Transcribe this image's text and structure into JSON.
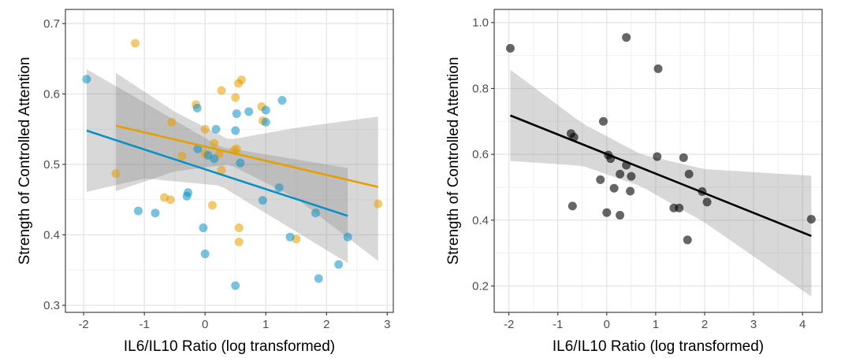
{
  "chart_data": [
    {
      "type": "scatter",
      "title": "",
      "xlabel": "IL6/IL10 Ratio (log transformed)",
      "ylabel": "Strength of Controlled Attention",
      "xlim": [
        -2.3,
        3.1
      ],
      "ylim": [
        0.29,
        0.72
      ],
      "x_ticks": [
        -2,
        -1,
        0,
        1,
        2,
        3
      ],
      "y_ticks": [
        0.3,
        0.4,
        0.5,
        0.6,
        0.7
      ],
      "x_tick_labels": [
        "-2",
        "-1",
        "0",
        "1",
        "2",
        "3"
      ],
      "y_tick_labels": [
        "0.3",
        "0.4",
        "0.5",
        "0.6",
        "0.7"
      ],
      "grid": true,
      "legend": "none",
      "series": [
        {
          "color": "#E69F00",
          "points": [
            [
              -1.15,
              0.672
            ],
            [
              -1.47,
              0.487
            ],
            [
              -0.55,
              0.56
            ],
            [
              -0.67,
              0.453
            ],
            [
              -0.57,
              0.45
            ],
            [
              -0.38,
              0.512
            ],
            [
              -0.15,
              0.585
            ],
            [
              0.0,
              0.55
            ],
            [
              0.12,
              0.442
            ],
            [
              0.23,
              0.515
            ],
            [
              0.27,
              0.605
            ],
            [
              0.27,
              0.492
            ],
            [
              0.48,
              0.52
            ],
            [
              0.5,
              0.595
            ],
            [
              0.52,
              0.522
            ],
            [
              0.55,
              0.615
            ],
            [
              0.6,
              0.62
            ],
            [
              0.56,
              0.41
            ],
            [
              0.56,
              0.39
            ],
            [
              0.93,
              0.582
            ],
            [
              0.95,
              0.562
            ],
            [
              1.5,
              0.394
            ],
            [
              2.85,
              0.444
            ],
            [
              0.0,
              0.515
            ],
            [
              0.15,
              0.53
            ]
          ],
          "fit": {
            "x": [
              -1.47,
              2.85
            ],
            "y": [
              0.555,
              0.468
            ]
          },
          "ci_upper": [
            [
              -1.47,
              0.63
            ],
            [
              -0.5,
              0.575
            ],
            [
              0.4,
              0.535
            ],
            [
              1.5,
              0.552
            ],
            [
              2.85,
              0.568
            ]
          ],
          "ci_lower": [
            [
              -1.47,
              0.462
            ],
            [
              -0.5,
              0.49
            ],
            [
              0.4,
              0.5
            ],
            [
              1.5,
              0.452
            ],
            [
              2.85,
              0.363
            ]
          ]
        },
        {
          "color": "#0E8FC4",
          "points": [
            [
              -1.95,
              0.621
            ],
            [
              -1.1,
              0.434
            ],
            [
              -0.82,
              0.431
            ],
            [
              -0.28,
              0.46
            ],
            [
              -0.3,
              0.455
            ],
            [
              -0.13,
              0.58
            ],
            [
              -0.12,
              0.522
            ],
            [
              -0.03,
              0.41
            ],
            [
              0.0,
              0.373
            ],
            [
              0.05,
              0.513
            ],
            [
              0.15,
              0.508
            ],
            [
              0.18,
              0.55
            ],
            [
              0.5,
              0.548
            ],
            [
              0.52,
              0.572
            ],
            [
              0.5,
              0.328
            ],
            [
              0.58,
              0.502
            ],
            [
              0.72,
              0.575
            ],
            [
              0.95,
              0.449
            ],
            [
              1.0,
              0.577
            ],
            [
              1.0,
              0.56
            ],
            [
              1.22,
              0.467
            ],
            [
              1.27,
              0.591
            ],
            [
              1.4,
              0.397
            ],
            [
              1.82,
              0.431
            ],
            [
              1.87,
              0.338
            ],
            [
              2.2,
              0.358
            ],
            [
              2.35,
              0.397
            ]
          ],
          "fit": {
            "x": [
              -1.95,
              2.35
            ],
            "y": [
              0.548,
              0.427
            ]
          },
          "ci_upper": [
            [
              -1.95,
              0.635
            ],
            [
              -1.0,
              0.588
            ],
            [
              0.25,
              0.525
            ],
            [
              1.3,
              0.51
            ],
            [
              2.35,
              0.495
            ]
          ],
          "ci_lower": [
            [
              -1.95,
              0.461
            ],
            [
              -1.0,
              0.48
            ],
            [
              0.25,
              0.47
            ],
            [
              1.3,
              0.415
            ],
            [
              2.35,
              0.36
            ]
          ]
        }
      ]
    },
    {
      "type": "scatter",
      "title": "",
      "xlabel": "IL6/IL10 Ratio (log transformed)",
      "ylabel": "Strength of Controlled Attention",
      "xlim": [
        -2.3,
        4.4
      ],
      "ylim": [
        0.12,
        1.04
      ],
      "x_ticks": [
        -2,
        -1,
        0,
        1,
        2,
        3,
        4
      ],
      "y_ticks": [
        0.2,
        0.4,
        0.6,
        0.8,
        1.0
      ],
      "x_tick_labels": [
        "-2",
        "-1",
        "0",
        "1",
        "2",
        "3",
        "4"
      ],
      "y_tick_labels": [
        "0.2",
        "0.4",
        "0.6",
        "0.8",
        "1.0"
      ],
      "grid": true,
      "legend": "none",
      "series": [
        {
          "color": "#000000",
          "points": [
            [
              -1.97,
              0.922
            ],
            [
              -0.73,
              0.663
            ],
            [
              -0.67,
              0.652
            ],
            [
              -0.7,
              0.443
            ],
            [
              -0.13,
              0.523
            ],
            [
              -0.07,
              0.7
            ],
            [
              0.0,
              0.423
            ],
            [
              0.03,
              0.598
            ],
            [
              0.08,
              0.587
            ],
            [
              0.15,
              0.497
            ],
            [
              0.27,
              0.54
            ],
            [
              0.27,
              0.415
            ],
            [
              0.4,
              0.955
            ],
            [
              0.4,
              0.567
            ],
            [
              0.48,
              0.488
            ],
            [
              0.5,
              0.533
            ],
            [
              1.03,
              0.593
            ],
            [
              1.05,
              0.86
            ],
            [
              1.37,
              0.437
            ],
            [
              1.48,
              0.437
            ],
            [
              1.57,
              0.59
            ],
            [
              1.65,
              0.34
            ],
            [
              1.68,
              0.54
            ],
            [
              1.95,
              0.487
            ],
            [
              2.05,
              0.455
            ],
            [
              4.18,
              0.403
            ]
          ],
          "fit": {
            "x": [
              -1.97,
              4.18
            ],
            "y": [
              0.718,
              0.352
            ]
          },
          "ci_upper": [
            [
              -1.97,
              0.857
            ],
            [
              -0.5,
              0.694
            ],
            [
              0.7,
              0.6
            ],
            [
              2.0,
              0.555
            ],
            [
              4.18,
              0.535
            ]
          ],
          "ci_lower": [
            [
              -1.97,
              0.58
            ],
            [
              -0.5,
              0.565
            ],
            [
              0.7,
              0.503
            ],
            [
              2.0,
              0.393
            ],
            [
              4.18,
              0.168
            ]
          ]
        }
      ]
    }
  ]
}
